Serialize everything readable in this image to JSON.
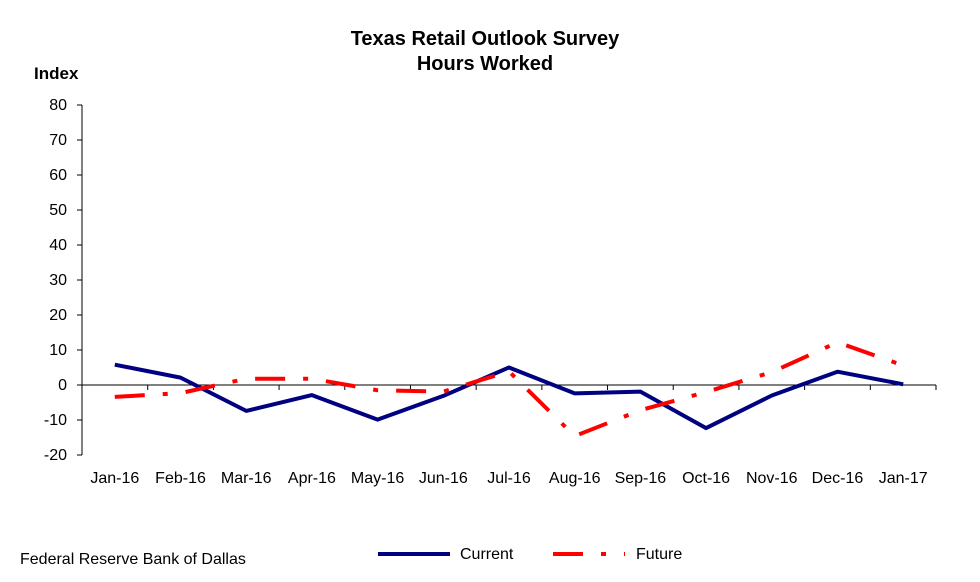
{
  "chart_data": {
    "type": "line",
    "title": "Texas Retail Outlook Survey",
    "subtitle": "Hours Worked",
    "ylabel": "Index",
    "xlabel": "",
    "ylim": [
      -20,
      80
    ],
    "yticks": [
      -20,
      -10,
      0,
      10,
      20,
      30,
      40,
      50,
      60,
      70,
      80
    ],
    "categories": [
      "Jan-16",
      "Feb-16",
      "Mar-16",
      "Apr-16",
      "May-16",
      "Jun-16",
      "Jul-16",
      "Aug-16",
      "Sep-16",
      "Oct-16",
      "Nov-16",
      "Dec-16",
      "Jan-17"
    ],
    "series": [
      {
        "name": "Current",
        "color": "#000080",
        "style": "solid",
        "values": [
          5.8,
          2.1,
          -7.4,
          -2.9,
          -9.9,
          -3.1,
          5.0,
          -2.4,
          -1.9,
          -12.3,
          -3.0,
          3.8,
          0.2
        ]
      },
      {
        "name": "Future",
        "color": "#ff0000",
        "style": "dash-dot",
        "values": [
          -3.4,
          -2.3,
          1.8,
          1.8,
          -1.5,
          -1.9,
          3.9,
          -14.6,
          -7.2,
          -2.0,
          3.7,
          12.2,
          5.6
        ]
      }
    ],
    "grid": false,
    "legend_position": "bottom"
  },
  "footer": {
    "source": "Federal Reserve Bank of Dallas"
  }
}
